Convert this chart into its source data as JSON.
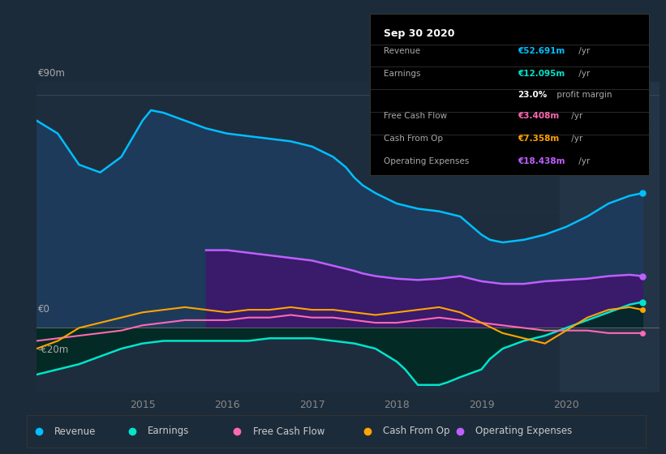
{
  "bg_color": "#1c2b3a",
  "plot_bg_color": "#1e2d3d",
  "highlight_bg_color": "#243447",
  "ylim": [
    -25,
    95
  ],
  "xlim": [
    2013.75,
    2021.1
  ],
  "x_ticks": [
    2015,
    2016,
    2017,
    2018,
    2019,
    2020
  ],
  "revenue": {
    "x": [
      2013.75,
      2014.0,
      2014.25,
      2014.5,
      2014.75,
      2015.0,
      2015.1,
      2015.25,
      2015.5,
      2015.75,
      2016.0,
      2016.25,
      2016.5,
      2016.75,
      2017.0,
      2017.25,
      2017.4,
      2017.5,
      2017.6,
      2017.75,
      2018.0,
      2018.25,
      2018.5,
      2018.75,
      2019.0,
      2019.1,
      2019.25,
      2019.5,
      2019.75,
      2020.0,
      2020.25,
      2020.5,
      2020.75,
      2020.9
    ],
    "y": [
      80,
      75,
      63,
      60,
      66,
      80,
      84,
      83,
      80,
      77,
      75,
      74,
      73,
      72,
      70,
      66,
      62,
      58,
      55,
      52,
      48,
      46,
      45,
      43,
      36,
      34,
      33,
      34,
      36,
      39,
      43,
      48,
      51,
      52
    ],
    "color": "#00bfff",
    "fill_color": "#1e3a5a",
    "lw": 1.8
  },
  "operating_expenses": {
    "x": [
      2015.75,
      2016.0,
      2016.25,
      2016.5,
      2016.75,
      2017.0,
      2017.25,
      2017.5,
      2017.6,
      2017.75,
      2018.0,
      2018.25,
      2018.5,
      2018.75,
      2019.0,
      2019.25,
      2019.5,
      2019.75,
      2020.0,
      2020.25,
      2020.5,
      2020.75,
      2020.9
    ],
    "y": [
      30,
      30,
      29,
      28,
      27,
      26,
      24,
      22,
      21,
      20,
      19,
      18.5,
      19,
      20,
      18,
      17,
      17,
      18,
      18.5,
      19,
      20,
      20.5,
      20
    ],
    "color": "#bf5fff",
    "fill_color": "#3a1a6a",
    "lw": 1.8
  },
  "earnings": {
    "x": [
      2013.75,
      2014.0,
      2014.25,
      2014.5,
      2014.75,
      2015.0,
      2015.25,
      2015.5,
      2015.75,
      2016.0,
      2016.25,
      2016.5,
      2016.75,
      2017.0,
      2017.25,
      2017.5,
      2017.75,
      2018.0,
      2018.1,
      2018.25,
      2018.5,
      2018.6,
      2018.75,
      2019.0,
      2019.1,
      2019.25,
      2019.5,
      2019.75,
      2020.0,
      2020.25,
      2020.5,
      2020.75,
      2020.9
    ],
    "y": [
      -18,
      -16,
      -14,
      -11,
      -8,
      -6,
      -5,
      -5,
      -5,
      -5,
      -5,
      -4,
      -4,
      -4,
      -5,
      -6,
      -8,
      -13,
      -16,
      -22,
      -22,
      -21,
      -19,
      -16,
      -12,
      -8,
      -5,
      -3,
      0,
      3,
      6,
      9,
      10
    ],
    "color": "#00e5cc",
    "fill_color": "#002a22",
    "lw": 1.8
  },
  "free_cash_flow": {
    "x": [
      2013.75,
      2014.0,
      2014.25,
      2014.5,
      2014.75,
      2015.0,
      2015.25,
      2015.5,
      2015.75,
      2016.0,
      2016.25,
      2016.5,
      2016.75,
      2017.0,
      2017.25,
      2017.5,
      2017.75,
      2018.0,
      2018.25,
      2018.5,
      2018.75,
      2019.0,
      2019.25,
      2019.5,
      2019.75,
      2020.0,
      2020.25,
      2020.5,
      2020.75,
      2020.9
    ],
    "y": [
      -5,
      -4,
      -3,
      -2,
      -1,
      1,
      2,
      3,
      3,
      3,
      4,
      4,
      5,
      4,
      4,
      3,
      2,
      2,
      3,
      4,
      3,
      2,
      1,
      0,
      -1,
      -1,
      -1,
      -2,
      -2,
      -2
    ],
    "color": "#ff69b4",
    "lw": 1.5
  },
  "cash_from_op": {
    "x": [
      2013.75,
      2014.0,
      2014.25,
      2014.5,
      2014.75,
      2015.0,
      2015.25,
      2015.5,
      2015.75,
      2016.0,
      2016.25,
      2016.5,
      2016.75,
      2017.0,
      2017.25,
      2017.5,
      2017.75,
      2018.0,
      2018.25,
      2018.5,
      2018.75,
      2019.0,
      2019.25,
      2019.5,
      2019.75,
      2020.0,
      2020.25,
      2020.5,
      2020.75,
      2020.9
    ],
    "y": [
      -8,
      -5,
      0,
      2,
      4,
      6,
      7,
      8,
      7,
      6,
      7,
      7,
      8,
      7,
      7,
      6,
      5,
      6,
      7,
      8,
      6,
      2,
      -2,
      -4,
      -6,
      -1,
      4,
      7,
      8,
      7
    ],
    "color": "#ffa500",
    "lw": 1.5
  },
  "legend": [
    {
      "label": "Revenue",
      "color": "#00bfff"
    },
    {
      "label": "Earnings",
      "color": "#00e5cc"
    },
    {
      "label": "Free Cash Flow",
      "color": "#ff69b4"
    },
    {
      "label": "Cash From Op",
      "color": "#ffa500"
    },
    {
      "label": "Operating Expenses",
      "color": "#bf5fff"
    }
  ]
}
